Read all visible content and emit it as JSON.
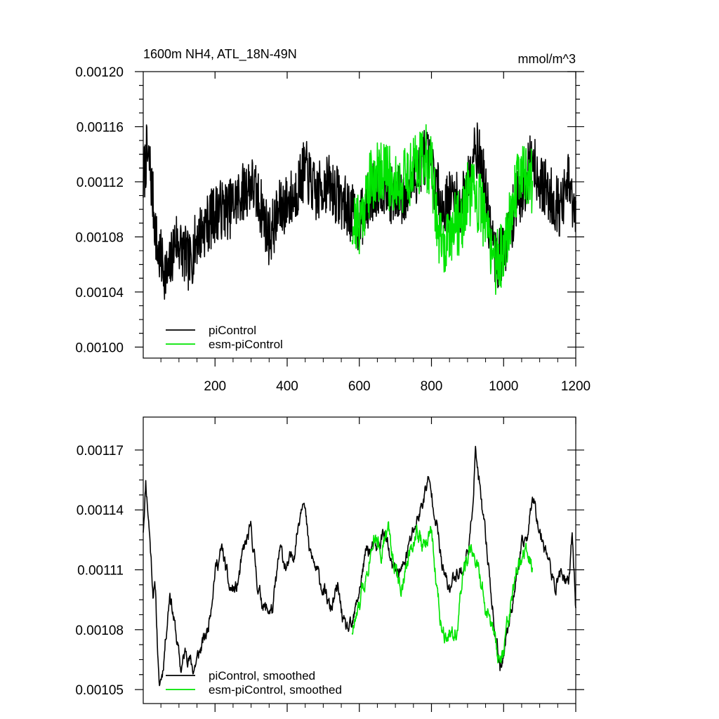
{
  "chart_data": [
    {
      "type": "line",
      "title": "1600m NH4, ATL_18N-49N",
      "units_label": "mmol/m^3",
      "xlabel": "",
      "ylabel": "",
      "xlim": [
        1,
        1200
      ],
      "ylim": [
        0.000992,
        0.0012
      ],
      "xticks": [
        200,
        400,
        600,
        800,
        1000,
        1200
      ],
      "xtick_labels": [
        "200",
        "400",
        "600",
        "800",
        "1000",
        "1200"
      ],
      "yticks": [
        0.001,
        0.00104,
        0.00108,
        0.00112,
        0.00116,
        0.0012
      ],
      "ytick_labels": [
        "0.00100",
        "0.00104",
        "0.00108",
        "0.00112",
        "0.00116",
        "0.00120"
      ],
      "legend_position": "bottom-left",
      "series": [
        {
          "name": "piControl",
          "color": "#000000",
          "x_range": [
            1,
            1200
          ],
          "anchors": [
            [
              1,
              0.00112
            ],
            [
              10,
              0.00114
            ],
            [
              20,
              0.00113
            ],
            [
              30,
              0.0011
            ],
            [
              40,
              0.00107
            ],
            [
              55,
              0.00106
            ],
            [
              70,
              0.00105
            ],
            [
              90,
              0.00108
            ],
            [
              110,
              0.00107
            ],
            [
              130,
              0.00106
            ],
            [
              150,
              0.00108
            ],
            [
              180,
              0.00109
            ],
            [
              210,
              0.0011
            ],
            [
              240,
              0.0011
            ],
            [
              270,
              0.00111
            ],
            [
              300,
              0.00112
            ],
            [
              330,
              0.0011
            ],
            [
              350,
              0.00108
            ],
            [
              380,
              0.0011
            ],
            [
              420,
              0.00111
            ],
            [
              450,
              0.00113
            ],
            [
              480,
              0.00111
            ],
            [
              510,
              0.00112
            ],
            [
              540,
              0.00111
            ],
            [
              570,
              0.0011
            ],
            [
              600,
              0.00109
            ],
            [
              630,
              0.00111
            ],
            [
              660,
              0.00112
            ],
            [
              690,
              0.00111
            ],
            [
              720,
              0.00111
            ],
            [
              750,
              0.00112
            ],
            [
              780,
              0.00114
            ],
            [
              800,
              0.00113
            ],
            [
              830,
              0.0011
            ],
            [
              860,
              0.00111
            ],
            [
              880,
              0.0011
            ],
            [
              900,
              0.00112
            ],
            [
              920,
              0.00115
            ],
            [
              940,
              0.00113
            ],
            [
              960,
              0.00109
            ],
            [
              980,
              0.00106
            ],
            [
              1000,
              0.00107
            ],
            [
              1030,
              0.0011
            ],
            [
              1060,
              0.00112
            ],
            [
              1080,
              0.00114
            ],
            [
              1100,
              0.00112
            ],
            [
              1130,
              0.00111
            ],
            [
              1160,
              0.0011
            ],
            [
              1180,
              0.00112
            ],
            [
              1200,
              0.00109
            ]
          ],
          "noise": 2.2e-05,
          "seed": 7
        },
        {
          "name": "esm-piControl",
          "color": "#00e400",
          "x_range": [
            580,
            1080
          ],
          "anchors": [
            [
              580,
              0.00109
            ],
            [
              600,
              0.00109
            ],
            [
              630,
              0.00112
            ],
            [
              660,
              0.00113
            ],
            [
              690,
              0.00112
            ],
            [
              720,
              0.00112
            ],
            [
              750,
              0.00113
            ],
            [
              780,
              0.00114
            ],
            [
              800,
              0.00113
            ],
            [
              820,
              0.00108
            ],
            [
              840,
              0.00107
            ],
            [
              860,
              0.00109
            ],
            [
              880,
              0.00109
            ],
            [
              900,
              0.00111
            ],
            [
              920,
              0.00111
            ],
            [
              940,
              0.0011
            ],
            [
              960,
              0.00108
            ],
            [
              980,
              0.00106
            ],
            [
              1000,
              0.00107
            ],
            [
              1020,
              0.0011
            ],
            [
              1050,
              0.00113
            ],
            [
              1080,
              0.00112
            ]
          ],
          "noise": 2.4e-05,
          "seed": 21
        }
      ]
    },
    {
      "type": "line",
      "title": "",
      "xlabel": "",
      "ylabel": "",
      "xlim": [
        1,
        1200
      ],
      "ylim": [
        0.001043,
        0.0011865
      ],
      "xticks": [
        200,
        400,
        600,
        800,
        1000,
        1200
      ],
      "xtick_labels": [],
      "yticks": [
        0.00105,
        0.00108,
        0.00111,
        0.00114,
        0.00117
      ],
      "ytick_labels": [
        "0.00105",
        "0.00108",
        "0.00111",
        "0.00114",
        "0.00117"
      ],
      "legend_position": "bottom-left",
      "series": [
        {
          "name": "piControl, smoothed",
          "color": "#000000",
          "x_range": [
            1,
            1200
          ],
          "anchors": [
            [
              1,
              0.00113
            ],
            [
              8,
              0.001155
            ],
            [
              18,
              0.00113
            ],
            [
              28,
              0.0011
            ],
            [
              35,
              0.0011
            ],
            [
              45,
              0.00105
            ],
            [
              55,
              0.00106
            ],
            [
              65,
              0.00108
            ],
            [
              75,
              0.0011
            ],
            [
              90,
              0.00108
            ],
            [
              105,
              0.00106
            ],
            [
              120,
              0.00107
            ],
            [
              140,
              0.00106
            ],
            [
              160,
              0.00107
            ],
            [
              180,
              0.00108
            ],
            [
              200,
              0.00111
            ],
            [
              220,
              0.00112
            ],
            [
              240,
              0.0011
            ],
            [
              260,
              0.0011
            ],
            [
              280,
              0.00112
            ],
            [
              300,
              0.00113
            ],
            [
              320,
              0.0011
            ],
            [
              340,
              0.00109
            ],
            [
              360,
              0.00109
            ],
            [
              380,
              0.00112
            ],
            [
              400,
              0.00111
            ],
            [
              420,
              0.00112
            ],
            [
              445,
              0.00115
            ],
            [
              460,
              0.00112
            ],
            [
              480,
              0.00111
            ],
            [
              500,
              0.0011
            ],
            [
              520,
              0.00109
            ],
            [
              540,
              0.0011
            ],
            [
              560,
              0.00108
            ],
            [
              580,
              0.00108
            ],
            [
              600,
              0.0011
            ],
            [
              620,
              0.00112
            ],
            [
              650,
              0.00112
            ],
            [
              670,
              0.00113
            ],
            [
              690,
              0.00111
            ],
            [
              720,
              0.00111
            ],
            [
              750,
              0.00113
            ],
            [
              770,
              0.00114
            ],
            [
              790,
              0.001155
            ],
            [
              810,
              0.00114
            ],
            [
              830,
              0.00111
            ],
            [
              850,
              0.0011
            ],
            [
              870,
              0.00111
            ],
            [
              890,
              0.00111
            ],
            [
              910,
              0.00113
            ],
            [
              922,
              0.00117
            ],
            [
              940,
              0.00114
            ],
            [
              960,
              0.00111
            ],
            [
              975,
              0.00108
            ],
            [
              990,
              0.00106
            ],
            [
              1000,
              0.00107
            ],
            [
              1020,
              0.00109
            ],
            [
              1050,
              0.00112
            ],
            [
              1070,
              0.00113
            ],
            [
              1080,
              0.00115
            ],
            [
              1100,
              0.00113
            ],
            [
              1120,
              0.00112
            ],
            [
              1140,
              0.0011
            ],
            [
              1160,
              0.00111
            ],
            [
              1180,
              0.0011
            ],
            [
              1190,
              0.00113
            ],
            [
              1200,
              0.00109
            ]
          ],
          "noise": 4.5e-06,
          "seed": 11
        },
        {
          "name": "esm-piControl, smoothed",
          "color": "#00e400",
          "x_range": [
            580,
            1080
          ],
          "anchors": [
            [
              580,
              0.00108
            ],
            [
              600,
              0.00109
            ],
            [
              620,
              0.00111
            ],
            [
              640,
              0.00113
            ],
            [
              660,
              0.00112
            ],
            [
              680,
              0.00113
            ],
            [
              700,
              0.00111
            ],
            [
              720,
              0.0011
            ],
            [
              740,
              0.00112
            ],
            [
              760,
              0.00113
            ],
            [
              780,
              0.00112
            ],
            [
              800,
              0.00113
            ],
            [
              815,
              0.0011
            ],
            [
              830,
              0.00108
            ],
            [
              850,
              0.00108
            ],
            [
              870,
              0.00108
            ],
            [
              890,
              0.00111
            ],
            [
              910,
              0.00112
            ],
            [
              930,
              0.00111
            ],
            [
              950,
              0.00109
            ],
            [
              970,
              0.00108
            ],
            [
              990,
              0.00106
            ],
            [
              1000,
              0.00107
            ],
            [
              1020,
              0.00109
            ],
            [
              1040,
              0.00111
            ],
            [
              1060,
              0.00112
            ],
            [
              1080,
              0.00111
            ]
          ],
          "noise": 5.5e-06,
          "seed": 33
        }
      ]
    }
  ]
}
